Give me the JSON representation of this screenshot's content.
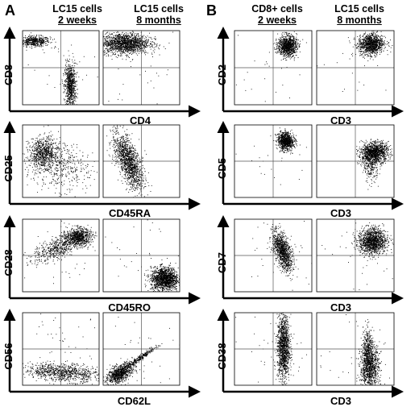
{
  "panel_A": {
    "letter": "A",
    "columns": [
      {
        "line1": "LC15 cells",
        "line2": "2 weeks"
      },
      {
        "line1": "LC15 cells",
        "line2": "8 months"
      }
    ]
  },
  "panel_B": {
    "letter": "B",
    "columns": [
      {
        "line1": "CD8+ cells",
        "line2": "2 weeks"
      },
      {
        "line1": "LC15 cells",
        "line2": "8 months"
      }
    ]
  },
  "colors": {
    "dots": "#000000",
    "quadrant_lines": "#555555",
    "frame": "#000000"
  },
  "chart_data": [
    {
      "type": "scatter",
      "panel": "A",
      "row": 0,
      "xlabel": "CD4",
      "ylabel": "CD8",
      "plots": [
        {
          "column": "2 weeks",
          "populations": [
            {
              "cx": 0.15,
              "cy": 0.86,
              "sx": 0.1,
              "sy": 0.035,
              "rot": 0,
              "n": 500
            },
            {
              "cx": 0.62,
              "cy": 0.26,
              "sx": 0.035,
              "sy": 0.15,
              "rot": 0,
              "n": 800
            },
            {
              "cx": 0.5,
              "cy": 0.5,
              "sx": 0.3,
              "sy": 0.3,
              "rot": 0,
              "n": 40
            }
          ]
        },
        {
          "column": "8 months",
          "populations": [
            {
              "cx": 0.28,
              "cy": 0.83,
              "sx": 0.16,
              "sy": 0.07,
              "rot": 0,
              "n": 1600
            },
            {
              "cx": 0.5,
              "cy": 0.5,
              "sx": 0.3,
              "sy": 0.3,
              "rot": 0,
              "n": 40
            }
          ]
        }
      ]
    },
    {
      "type": "scatter",
      "panel": "A",
      "row": 1,
      "xlabel": "CD45RA",
      "ylabel": "CD25",
      "plots": [
        {
          "column": "2 weeks",
          "populations": [
            {
              "cx": 0.27,
              "cy": 0.62,
              "sx": 0.09,
              "sy": 0.1,
              "rot": 0,
              "n": 700
            },
            {
              "cx": 0.45,
              "cy": 0.45,
              "sx": 0.22,
              "sy": 0.16,
              "rot": -0.3,
              "n": 500
            }
          ]
        },
        {
          "column": "8 months",
          "populations": [
            {
              "cx": 0.33,
              "cy": 0.5,
              "sx": 0.07,
              "sy": 0.2,
              "rot": 0.35,
              "n": 1400
            }
          ]
        }
      ]
    },
    {
      "type": "scatter",
      "panel": "A",
      "row": 2,
      "xlabel": "CD45RO",
      "ylabel": "CD28",
      "plots": [
        {
          "column": "2 weeks",
          "populations": [
            {
              "cx": 0.73,
              "cy": 0.76,
              "sx": 0.08,
              "sy": 0.06,
              "rot": 0,
              "n": 700
            },
            {
              "cx": 0.48,
              "cy": 0.62,
              "sx": 0.18,
              "sy": 0.07,
              "rot": 0.45,
              "n": 600
            },
            {
              "cx": 0.5,
              "cy": 0.5,
              "sx": 0.3,
              "sy": 0.3,
              "rot": 0,
              "n": 40
            }
          ]
        },
        {
          "column": "8 months",
          "populations": [
            {
              "cx": 0.8,
              "cy": 0.18,
              "sx": 0.09,
              "sy": 0.08,
              "rot": 0,
              "n": 1500
            },
            {
              "cx": 0.5,
              "cy": 0.5,
              "sx": 0.3,
              "sy": 0.3,
              "rot": 0,
              "n": 30
            }
          ]
        }
      ]
    },
    {
      "type": "scatter",
      "panel": "A",
      "row": 3,
      "xlabel": "CD62L",
      "ylabel": "CD56",
      "plots": [
        {
          "column": "2 weeks",
          "populations": [
            {
              "cx": 0.52,
              "cy": 0.18,
              "sx": 0.25,
              "sy": 0.06,
              "rot": -0.08,
              "n": 900
            },
            {
              "cx": 0.5,
              "cy": 0.5,
              "sx": 0.3,
              "sy": 0.3,
              "rot": 0,
              "n": 50
            }
          ]
        },
        {
          "column": "8 months",
          "populations": [
            {
              "cx": 0.22,
              "cy": 0.17,
              "sx": 0.1,
              "sy": 0.05,
              "rot": 0.6,
              "n": 900
            },
            {
              "cx": 0.48,
              "cy": 0.38,
              "sx": 0.14,
              "sy": 0.015,
              "rot": 0.62,
              "n": 300
            },
            {
              "cx": 0.5,
              "cy": 0.5,
              "sx": 0.3,
              "sy": 0.3,
              "rot": 0,
              "n": 30
            }
          ]
        }
      ]
    },
    {
      "type": "scatter",
      "panel": "B",
      "row": 0,
      "xlabel": "CD3",
      "ylabel": "CD2",
      "plots": [
        {
          "column": "2 weeks",
          "populations": [
            {
              "cx": 0.68,
              "cy": 0.8,
              "sx": 0.06,
              "sy": 0.07,
              "rot": 0,
              "n": 1000
            },
            {
              "cx": 0.5,
              "cy": 0.5,
              "sx": 0.3,
              "sy": 0.3,
              "rot": 0,
              "n": 30
            }
          ]
        },
        {
          "column": "8 months",
          "populations": [
            {
              "cx": 0.7,
              "cy": 0.82,
              "sx": 0.08,
              "sy": 0.07,
              "rot": 0.2,
              "n": 1100
            },
            {
              "cx": 0.5,
              "cy": 0.5,
              "sx": 0.3,
              "sy": 0.3,
              "rot": 0,
              "n": 30
            }
          ]
        }
      ]
    },
    {
      "type": "scatter",
      "panel": "B",
      "row": 1,
      "xlabel": "CD3",
      "ylabel": "CD5",
      "plots": [
        {
          "column": "2 weeks",
          "populations": [
            {
              "cx": 0.66,
              "cy": 0.78,
              "sx": 0.05,
              "sy": 0.06,
              "rot": 0.3,
              "n": 900
            },
            {
              "cx": 0.5,
              "cy": 0.5,
              "sx": 0.3,
              "sy": 0.3,
              "rot": 0,
              "n": 30
            }
          ]
        },
        {
          "column": "8 months",
          "populations": [
            {
              "cx": 0.74,
              "cy": 0.62,
              "sx": 0.09,
              "sy": 0.07,
              "rot": 0.3,
              "n": 1200
            },
            {
              "cx": 0.7,
              "cy": 0.45,
              "sx": 0.05,
              "sy": 0.12,
              "rot": 0,
              "n": 250
            }
          ]
        }
      ]
    },
    {
      "type": "scatter",
      "panel": "B",
      "row": 2,
      "xlabel": "CD3",
      "ylabel": "CD7",
      "plots": [
        {
          "column": "2 weeks",
          "populations": [
            {
              "cx": 0.62,
              "cy": 0.56,
              "sx": 0.05,
              "sy": 0.14,
              "rot": 0.3,
              "n": 1100
            },
            {
              "cx": 0.5,
              "cy": 0.5,
              "sx": 0.3,
              "sy": 0.3,
              "rot": 0,
              "n": 30
            }
          ]
        },
        {
          "column": "8 months",
          "populations": [
            {
              "cx": 0.72,
              "cy": 0.7,
              "sx": 0.09,
              "sy": 0.09,
              "rot": 0.2,
              "n": 1300
            },
            {
              "cx": 0.5,
              "cy": 0.5,
              "sx": 0.3,
              "sy": 0.3,
              "rot": 0,
              "n": 30
            }
          ]
        }
      ]
    },
    {
      "type": "scatter",
      "panel": "B",
      "row": 3,
      "xlabel": "CD3",
      "ylabel": "CD38",
      "plots": [
        {
          "column": "2 weeks",
          "populations": [
            {
              "cx": 0.63,
              "cy": 0.52,
              "sx": 0.04,
              "sy": 0.22,
              "rot": 0,
              "n": 1300
            },
            {
              "cx": 0.5,
              "cy": 0.5,
              "sx": 0.3,
              "sy": 0.3,
              "rot": 0,
              "n": 40
            }
          ]
        },
        {
          "column": "8 months",
          "populations": [
            {
              "cx": 0.68,
              "cy": 0.25,
              "sx": 0.06,
              "sy": 0.16,
              "rot": 0,
              "n": 1100
            },
            {
              "cx": 0.66,
              "cy": 0.55,
              "sx": 0.03,
              "sy": 0.12,
              "rot": 0,
              "n": 250
            },
            {
              "cx": 0.5,
              "cy": 0.5,
              "sx": 0.3,
              "sy": 0.3,
              "rot": 0,
              "n": 30
            }
          ]
        }
      ]
    }
  ]
}
